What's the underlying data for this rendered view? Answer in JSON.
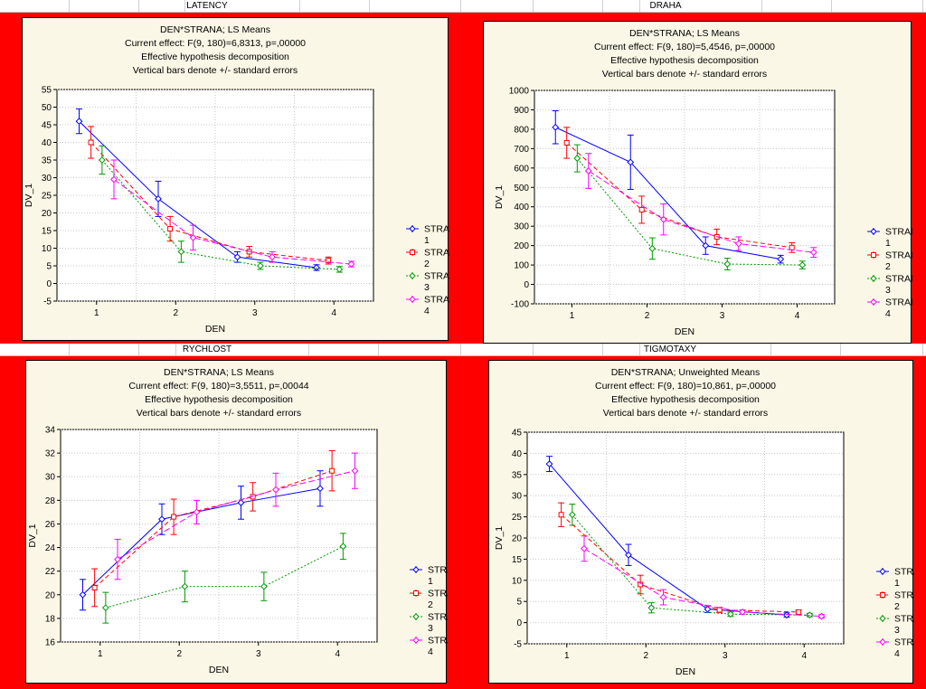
{
  "sheets": {
    "top_left": "LATENCY",
    "top_right": "DRAHA",
    "bottom_left": "RYCHLOST",
    "bottom_right": "TIGMOTAXY"
  },
  "series_colors": [
    "#0000ff",
    "#ff0000",
    "#009900",
    "#ff00ff"
  ],
  "chart_data": [
    {
      "id": "latency",
      "type": "line",
      "title": "DEN*STRANA; LS Means",
      "subtitle": [
        "Current effect: F(9, 180)=6,8313, p=,00000",
        "Effective hypothesis decomposition",
        "Vertical bars denote +/- standard errors"
      ],
      "xlabel": "DEN",
      "ylabel": "DV_1",
      "ylim": [
        -5,
        55
      ],
      "yticks": [
        -5,
        0,
        5,
        10,
        15,
        20,
        25,
        30,
        35,
        40,
        45,
        50,
        55
      ],
      "xticks": [
        1,
        2,
        3,
        4
      ],
      "legend_title": "STRANA",
      "series": [
        {
          "name": "1",
          "x": [
            1,
            2,
            3,
            4
          ],
          "values": [
            46,
            24,
            7.5,
            4.5
          ],
          "err": [
            3.5,
            5,
            1.5,
            0.8
          ]
        },
        {
          "name": "2",
          "x": [
            1,
            2,
            3,
            4
          ],
          "values": [
            40,
            15.5,
            9,
            6.5
          ],
          "err": [
            4.5,
            3.5,
            1.5,
            1
          ]
        },
        {
          "name": "3",
          "x": [
            1,
            2,
            3,
            4
          ],
          "values": [
            35,
            9,
            5,
            4
          ],
          "err": [
            4,
            3,
            1,
            0.8
          ]
        },
        {
          "name": "4",
          "x": [
            1,
            2,
            3,
            4
          ],
          "values": [
            29.5,
            13,
            7.5,
            5.5
          ],
          "err": [
            5.5,
            3.5,
            1.5,
            0.8
          ]
        }
      ]
    },
    {
      "id": "draha",
      "type": "line",
      "title": "DEN*STRANA; LS Means",
      "subtitle": [
        "Current effect: F(9, 180)=5,4546, p=,00000",
        "Effective hypothesis decomposition",
        "Vertical bars denote +/- standard errors"
      ],
      "xlabel": "DEN",
      "ylabel": "DV_1",
      "ylim": [
        -100,
        1000
      ],
      "yticks": [
        -100,
        0,
        100,
        200,
        300,
        400,
        500,
        600,
        700,
        800,
        900,
        1000
      ],
      "xticks": [
        1,
        2,
        3,
        4
      ],
      "legend_title": "STRANA",
      "series": [
        {
          "name": "1",
          "x": [
            1,
            2,
            3,
            4
          ],
          "values": [
            810,
            630,
            200,
            130
          ],
          "err": [
            85,
            140,
            45,
            20
          ]
        },
        {
          "name": "2",
          "x": [
            1,
            2,
            3,
            4
          ],
          "values": [
            730,
            385,
            245,
            190
          ],
          "err": [
            80,
            70,
            40,
            25
          ]
        },
        {
          "name": "3",
          "x": [
            1,
            2,
            3,
            4
          ],
          "values": [
            650,
            185,
            105,
            100
          ],
          "err": [
            70,
            55,
            30,
            20
          ]
        },
        {
          "name": "4",
          "x": [
            1,
            2,
            3,
            4
          ],
          "values": [
            585,
            335,
            210,
            165
          ],
          "err": [
            90,
            80,
            35,
            25
          ]
        }
      ]
    },
    {
      "id": "rychlost",
      "type": "line",
      "title": "DEN*STRANA; LS Means",
      "subtitle": [
        "Current effect: F(9, 180)=3,5511, p=,00044",
        "Effective hypothesis decomposition",
        "Vertical bars denote +/- standard errors"
      ],
      "xlabel": "DEN",
      "ylabel": "DV_1",
      "ylim": [
        16,
        34
      ],
      "yticks": [
        16,
        18,
        20,
        22,
        24,
        26,
        28,
        30,
        32,
        34
      ],
      "xticks": [
        1,
        2,
        3,
        4
      ],
      "legend_title": "STRANA",
      "series": [
        {
          "name": "1",
          "x": [
            1,
            2,
            3,
            4
          ],
          "values": [
            20,
            26.4,
            27.8,
            29
          ],
          "err": [
            1.3,
            1.3,
            1.4,
            1.5
          ]
        },
        {
          "name": "2",
          "x": [
            1,
            2,
            3,
            4
          ],
          "values": [
            20.6,
            26.6,
            28.3,
            30.5
          ],
          "err": [
            1.6,
            1.5,
            1.2,
            1.7
          ]
        },
        {
          "name": "3",
          "x": [
            1,
            2,
            3,
            4
          ],
          "values": [
            18.9,
            20.7,
            20.7,
            24.1
          ],
          "err": [
            1.3,
            1.3,
            1.2,
            1.1
          ]
        },
        {
          "name": "4",
          "x": [
            1,
            2,
            3,
            4
          ],
          "values": [
            23,
            27,
            28.9,
            30.5
          ],
          "err": [
            1.7,
            1,
            1.4,
            1.5
          ]
        }
      ]
    },
    {
      "id": "tigmotaxy",
      "type": "line",
      "title": "DEN*STRANA; Unweighted Means",
      "subtitle": [
        "Current effect: F(9, 180)=10,861, p=,00000",
        "Effective hypothesis decomposition",
        "Vertical bars denote +/- standard errors"
      ],
      "xlabel": "DEN",
      "ylabel": "DV_1",
      "ylim": [
        -5,
        45
      ],
      "yticks": [
        -5,
        0,
        5,
        10,
        15,
        20,
        25,
        30,
        35,
        40,
        45
      ],
      "xticks": [
        1,
        2,
        3,
        4
      ],
      "legend_title": "STRANA",
      "series": [
        {
          "name": "1",
          "x": [
            1,
            2,
            3,
            4
          ],
          "values": [
            37.5,
            16,
            3.2,
            1.8
          ],
          "err": [
            1.8,
            2.5,
            0.8,
            0.5
          ]
        },
        {
          "name": "2",
          "x": [
            1,
            2,
            3,
            4
          ],
          "values": [
            25.5,
            9,
            3,
            2.5
          ],
          "err": [
            2.8,
            2.2,
            0.6,
            0.5
          ]
        },
        {
          "name": "3",
          "x": [
            1,
            2,
            3,
            4
          ],
          "values": [
            25.5,
            3.5,
            2,
            1.8
          ],
          "err": [
            2.5,
            1.2,
            0.5,
            0.4
          ]
        },
        {
          "name": "4",
          "x": [
            1,
            2,
            3,
            4
          ],
          "values": [
            17.5,
            6,
            2.5,
            1.5
          ],
          "err": [
            3,
            1.8,
            0.5,
            0.4
          ]
        }
      ]
    }
  ]
}
